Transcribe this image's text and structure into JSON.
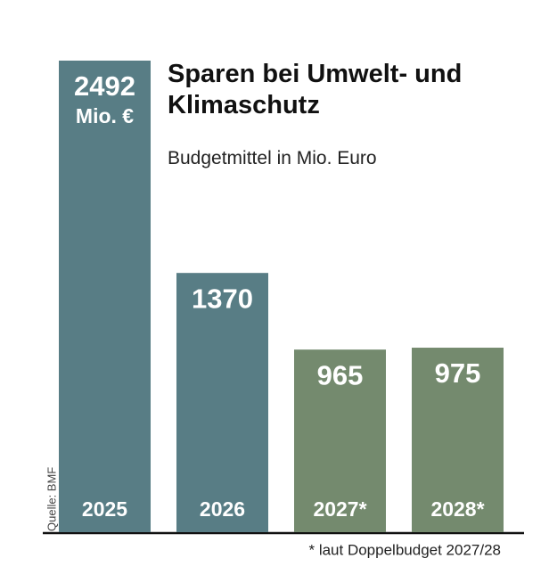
{
  "chart_data": {
    "type": "bar",
    "title": "Sparen bei Umwelt- und Klimaschutz",
    "subtitle": "Budgetmittel in Mio. Euro",
    "categories": [
      "2025",
      "2026",
      "2027*",
      "2028*"
    ],
    "values": [
      2492,
      1370,
      965,
      975
    ],
    "unit_label": "Mio. €",
    "colors": [
      "#587d85",
      "#587d85",
      "#748a6e",
      "#748a6e"
    ],
    "source": "Quelle: BMF",
    "footnote": "* laut Doppelbudget 2027/28"
  }
}
